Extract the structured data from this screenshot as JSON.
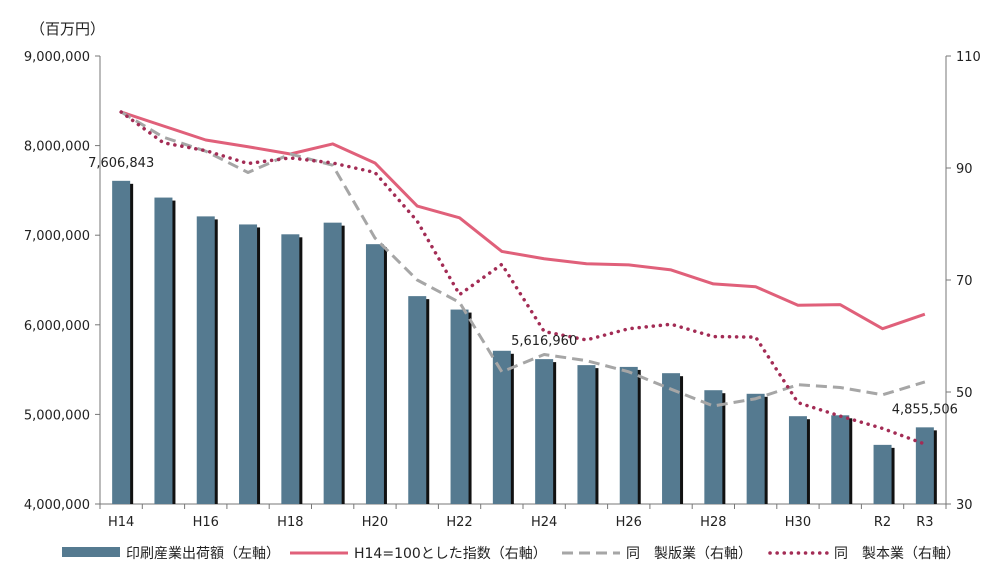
{
  "chart_data": {
    "type": "bar",
    "y_unit_label": "（百万円）",
    "categories": [
      "H14",
      "H15",
      "H16",
      "H17",
      "H18",
      "H19",
      "H20",
      "H21",
      "H22",
      "H23",
      "H24",
      "H25",
      "H26",
      "H27",
      "H28",
      "H29",
      "H30",
      "R1",
      "R2",
      "R3"
    ],
    "x_tick_labels": [
      "H14",
      "",
      "H16",
      "",
      "H18",
      "",
      "H20",
      "",
      "H22",
      "",
      "H24",
      "",
      "H26",
      "",
      "H28",
      "",
      "H30",
      "",
      "R2",
      "R3"
    ],
    "left_axis": {
      "min": 4000000,
      "max": 9000000,
      "ticks": [
        4000000,
        5000000,
        6000000,
        7000000,
        8000000,
        9000000
      ],
      "tick_labels": [
        "4,000,000",
        "5,000,000",
        "6,000,000",
        "7,000,000",
        "8,000,000",
        "9,000,000"
      ]
    },
    "right_axis": {
      "min": 30,
      "max": 110,
      "ticks": [
        30,
        50,
        70,
        90,
        110
      ],
      "tick_labels": [
        "30",
        "50",
        "70",
        "90",
        "110"
      ]
    },
    "bars": {
      "name": "印刷産業出荷額（左軸）",
      "color": "#557a90",
      "values": [
        7606843,
        7420000,
        7210000,
        7120000,
        7010000,
        7140000,
        6900000,
        6320000,
        6170000,
        5710000,
        5616960,
        5550000,
        5530000,
        5460000,
        5270000,
        5230000,
        4980000,
        4990000,
        4660000,
        4855506
      ]
    },
    "series": [
      {
        "name": "H14=100とした指数（右軸）",
        "style": "solid",
        "color": "#e0607a",
        "values": [
          100,
          97.5,
          95,
          93.8,
          92.5,
          94.3,
          90.9,
          83.2,
          81.1,
          75.1,
          73.8,
          72.9,
          72.7,
          71.8,
          69.3,
          68.8,
          65.5,
          65.6,
          61.3,
          63.9
        ]
      },
      {
        "name": "同　製版業（右軸）",
        "style": "dashed",
        "color": "#a6a6a6",
        "values": [
          100,
          95.5,
          93,
          89.2,
          92.5,
          90.5,
          77.5,
          70,
          66,
          53.6,
          56.7,
          55.6,
          53.6,
          50.5,
          47.5,
          48.8,
          51.3,
          50.8,
          49.5,
          51.8
        ]
      },
      {
        "name": "同　製本業（右軸）",
        "style": "dotted",
        "color": "#a32c55",
        "values": [
          100,
          94.5,
          93.1,
          90.8,
          91.8,
          90.9,
          89.2,
          80.5,
          67.4,
          72.8,
          60.8,
          59.3,
          61.3,
          62.1,
          59.9,
          59.8,
          48.1,
          45.7,
          43.5,
          40.7
        ]
      }
    ],
    "data_labels": [
      {
        "index": 0,
        "text": "7,606,843"
      },
      {
        "index": 10,
        "text": "5,616,960"
      },
      {
        "index": 19,
        "text": "4,855,506"
      }
    ],
    "legend_position": "bottom",
    "grid": false
  }
}
